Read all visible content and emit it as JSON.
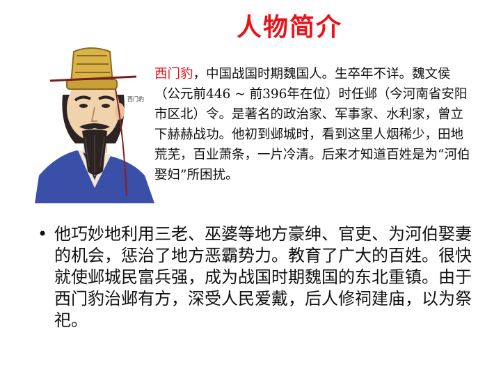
{
  "slide": {
    "title": "人物简介",
    "seal_text": "西门豹",
    "intro": {
      "name": "西门豹",
      "text": "，中国战国时期魏国人。生卒年不详。魏文侯（公元前446 ~ 前396年在位）时任邺（今河南省安阳市区北）令。是著名的政治家、军事家、水利家，曾立下赫赫战功。他初到邺城时，看到这里人烟稀少，田地荒芜，百业萧条，一片冷清。后来才知道百姓是为“河伯娶妇”所困扰。"
    },
    "bullets": [
      {
        "marker": "•",
        "text": "他巧妙地利用三老、巫婆等地方豪绅、官吏、为河伯娶妻的机会，惩治了地方恶霸势力。教育了广大的百姓。很快就使邺城民富兵强，成为战国时期魏国的东北重镇。由于西门豹治邺有方，深受人民爱戴，后人修祠建庙，以为祭祀。"
      }
    ],
    "colors": {
      "title": "#e8141c",
      "name": "#e8141c",
      "robe": "#3a4fa8",
      "hat": "#d9b34a"
    }
  }
}
